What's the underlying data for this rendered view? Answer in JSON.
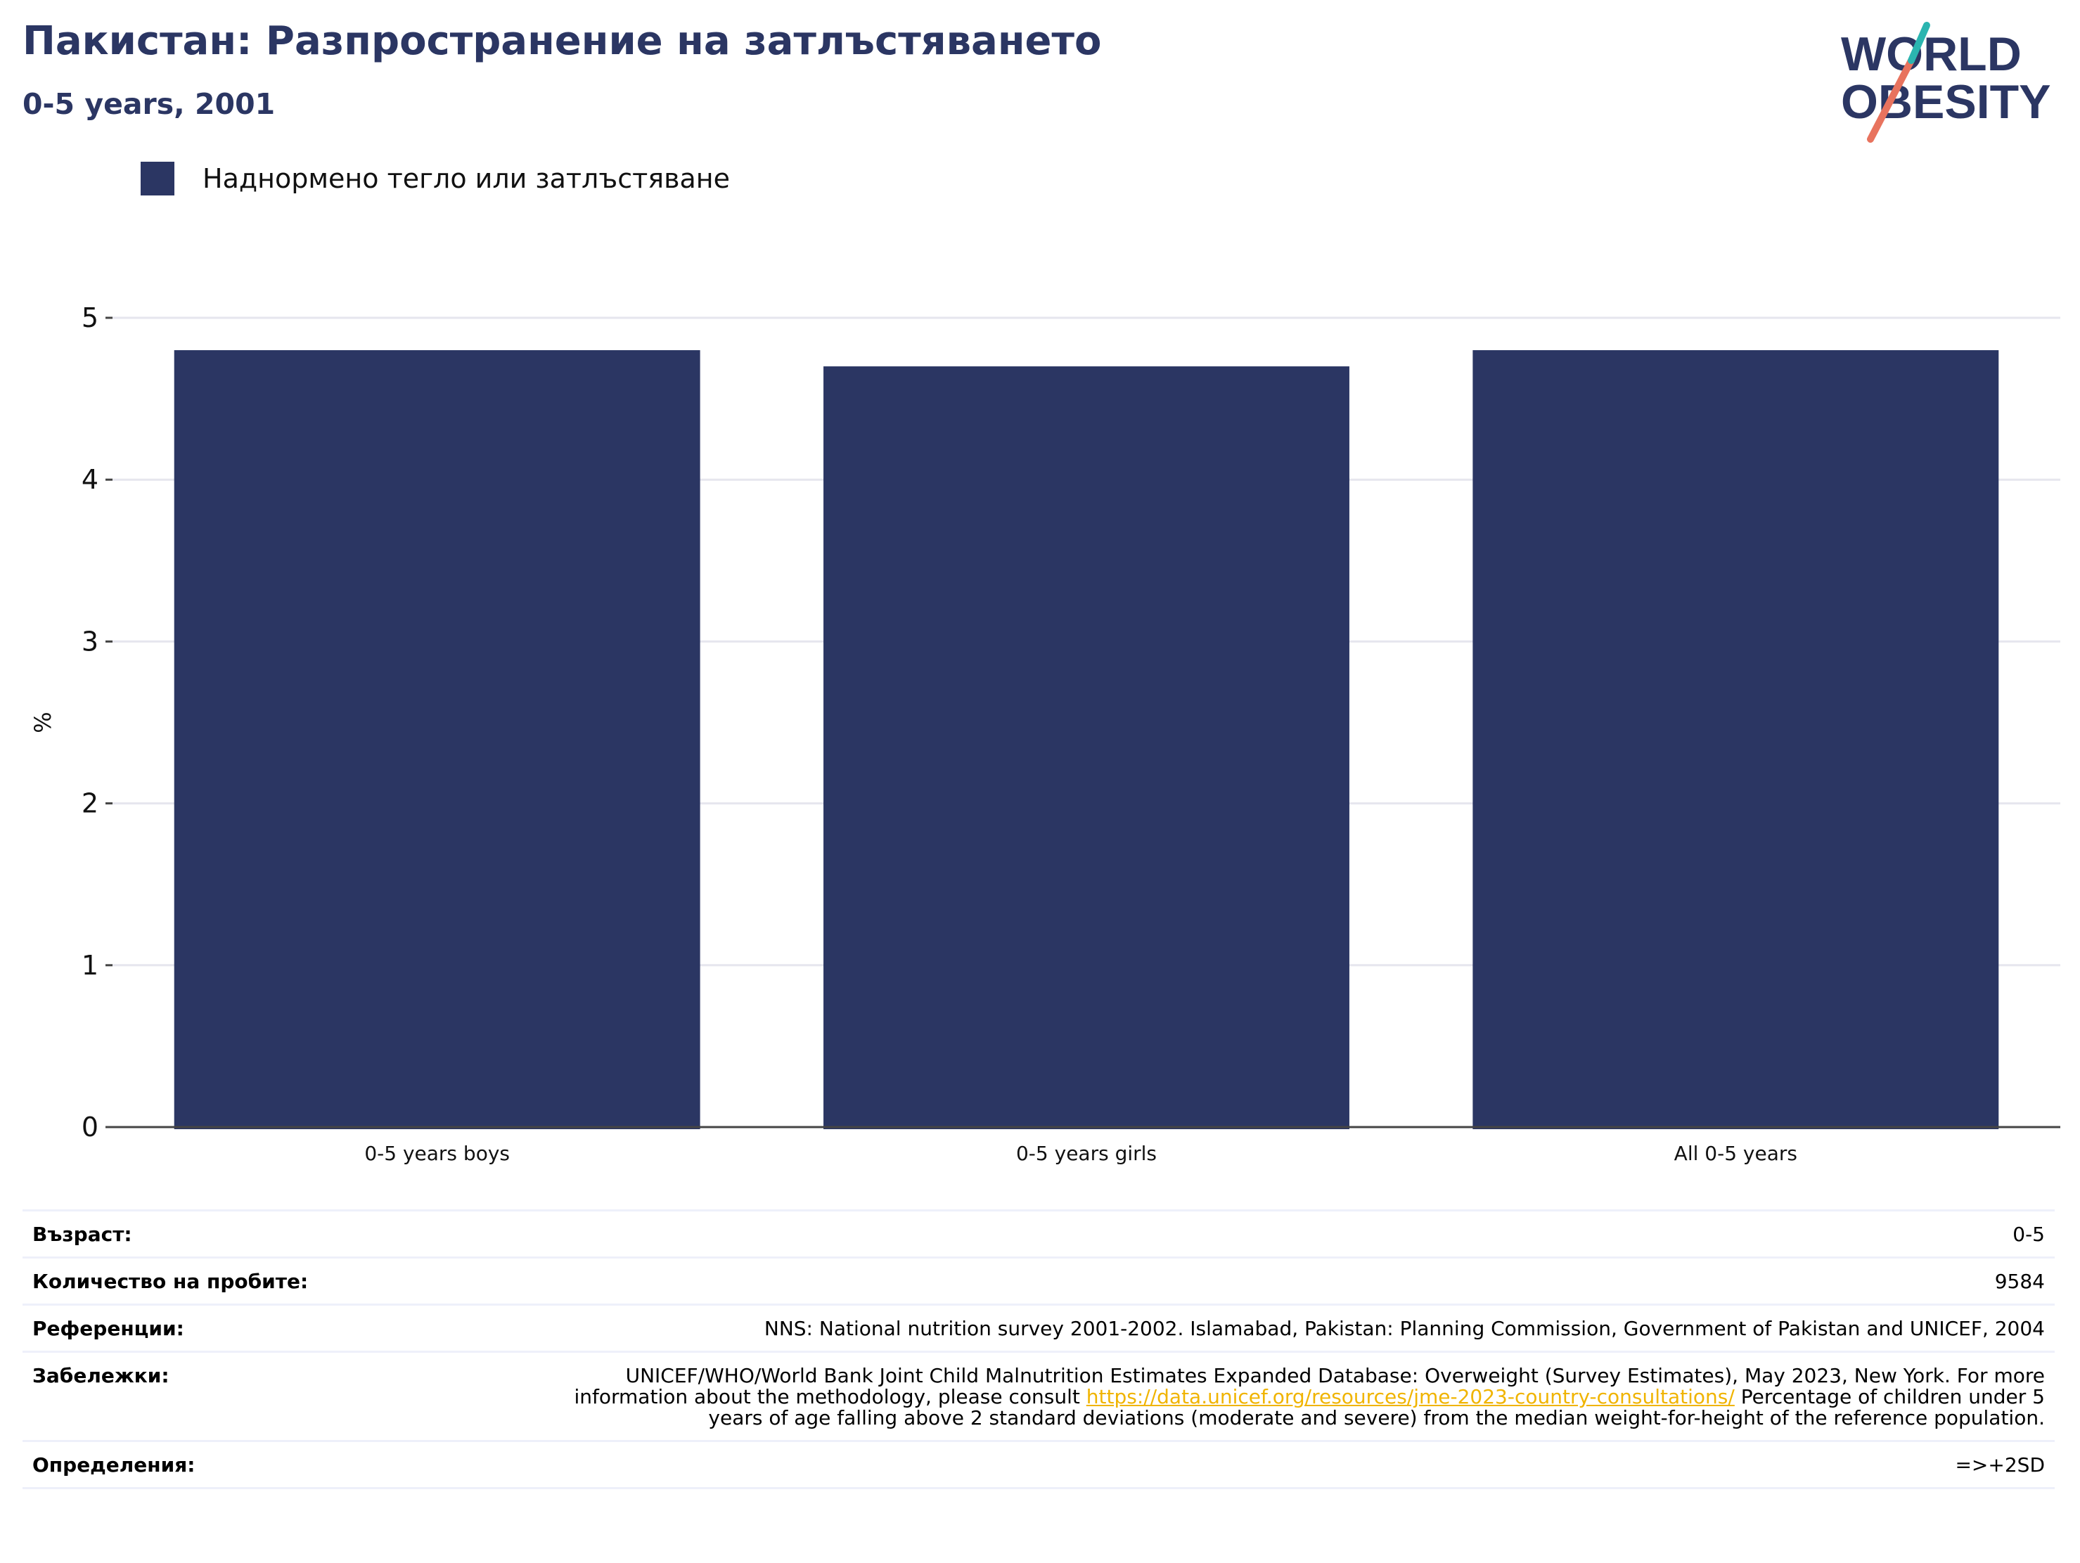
{
  "header": {
    "title": "Пакистан: Разпространение на затлъстяването",
    "subtitle": "0-5 years, 2001"
  },
  "logo": {
    "line1": "WORLD",
    "line2": "OBESITY"
  },
  "legend": {
    "label": "Наднормено тегло или затлъстяване",
    "color": "#2b3663"
  },
  "chart_data": {
    "type": "bar",
    "categories": [
      "0-5 years boys",
      "0-5 years girls",
      "All 0-5 years"
    ],
    "series": [
      {
        "name": "Наднормено тегло или затлъстяване",
        "values": [
          4.8,
          4.7,
          4.8
        ]
      }
    ],
    "ylabel": "%",
    "xlabel": "",
    "ylim": [
      0,
      5
    ],
    "yticks": [
      0,
      1,
      2,
      3,
      4,
      5
    ],
    "grid": true,
    "legend_position": "top-left",
    "bar_color": "#2b3663"
  },
  "info": {
    "age_label": "Възраст:",
    "age_value": "0-5",
    "sample_label": "Количество на пробите:",
    "sample_value": "9584",
    "refs_label": "Референции:",
    "refs_value": "NNS: National nutrition survey 2001-2002. Islamabad, Pakistan: Planning Commission, Government of Pakistan and UNICEF, 2004",
    "notes_label": "Забележки:",
    "notes_pre": "UNICEF/WHO/World Bank Joint Child Malnutrition Estimates Expanded Database: Overweight (Survey Estimates), May 2023, New York. For more information about the methodology, please consult ",
    "notes_link": "https://data.unicef.org/resources/jme-2023-country-consultations/",
    "notes_post": " Percentage of children under 5 years of age falling above 2 standard deviations (moderate and severe) from the median weight-for-height of the reference population.",
    "defs_label": "Определения:",
    "defs_value": "=>+2SD"
  }
}
